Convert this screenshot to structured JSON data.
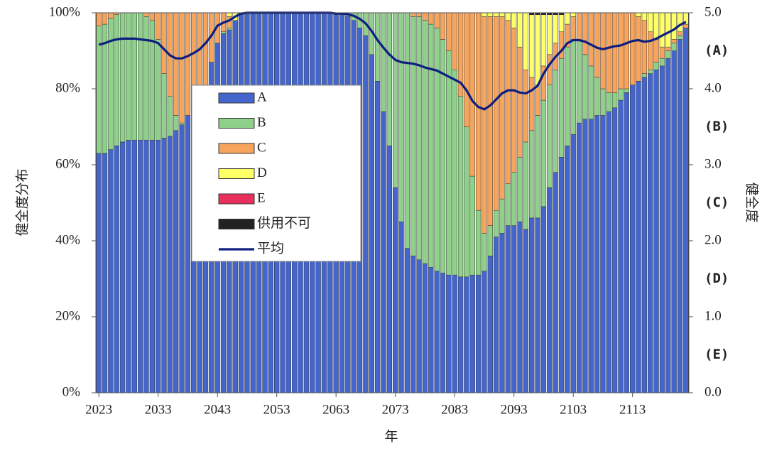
{
  "chart_data": {
    "type": "stacked_bar",
    "x_label": "年",
    "y_label": "健全度分布",
    "y2_label": "健全度",
    "x": [
      2023,
      2024,
      2025,
      2026,
      2027,
      2028,
      2029,
      2030,
      2031,
      2032,
      2033,
      2034,
      2035,
      2036,
      2037,
      2038,
      2039,
      2040,
      2041,
      2042,
      2043,
      2044,
      2045,
      2046,
      2047,
      2048,
      2049,
      2050,
      2051,
      2052,
      2053,
      2054,
      2055,
      2056,
      2057,
      2058,
      2059,
      2060,
      2061,
      2062,
      2063,
      2064,
      2065,
      2066,
      2067,
      2068,
      2069,
      2070,
      2071,
      2072,
      2073,
      2074,
      2075,
      2076,
      2077,
      2078,
      2079,
      2080,
      2081,
      2082,
      2083,
      2084,
      2085,
      2086,
      2087,
      2088,
      2089,
      2090,
      2091,
      2092,
      2093,
      2094,
      2095,
      2096,
      2097,
      2098,
      2099,
      2100,
      2101,
      2102,
      2103,
      2104,
      2105,
      2106,
      2107,
      2108,
      2109,
      2110,
      2111,
      2112,
      2113,
      2114,
      2115,
      2116,
      2117,
      2118,
      2119,
      2120,
      2121,
      2122
    ],
    "xlim": [
      2022.5,
      2122.5
    ],
    "xticks": [
      2023,
      2033,
      2043,
      2053,
      2063,
      2073,
      2083,
      2093,
      2103,
      2113
    ],
    "ylim": [
      0,
      100
    ],
    "yticks": [
      {
        "value": 0,
        "label": "0%"
      },
      {
        "value": 20,
        "label": "20%"
      },
      {
        "value": 40,
        "label": "40%"
      },
      {
        "value": 60,
        "label": "60%"
      },
      {
        "value": 80,
        "label": "80%"
      },
      {
        "value": 100,
        "label": "100%"
      }
    ],
    "y2lim": [
      0,
      5
    ],
    "y2ticks": [
      {
        "value": 0,
        "label": "0.0"
      },
      {
        "value": 1,
        "label": "1.0"
      },
      {
        "value": 2,
        "label": "2.0"
      },
      {
        "value": 3,
        "label": "3.0"
      },
      {
        "value": 4,
        "label": "4.0"
      },
      {
        "value": 5,
        "label": "5.0"
      }
    ],
    "y2_annotations": [
      {
        "value": 4.5,
        "label": "(A)"
      },
      {
        "value": 3.5,
        "label": "(B)"
      },
      {
        "value": 2.5,
        "label": "(C)"
      },
      {
        "value": 1.5,
        "label": "(D)"
      },
      {
        "value": 0.5,
        "label": "(E)"
      }
    ],
    "series": [
      {
        "name": "A",
        "color": "#4466cc",
        "values": [
          63,
          63,
          64,
          65,
          66,
          66.5,
          66.5,
          66.5,
          66.5,
          66.5,
          66.5,
          67,
          67.5,
          69,
          70.5,
          73,
          75,
          77,
          81,
          87,
          92,
          94.5,
          95.5,
          98,
          99.5,
          100,
          100,
          100,
          100,
          100,
          100,
          100,
          100,
          100,
          100,
          100,
          100,
          100,
          100,
          100,
          99.5,
          99.5,
          99,
          98,
          96,
          94,
          89,
          82,
          74,
          65,
          54,
          45,
          38,
          36,
          35,
          34,
          33,
          32,
          31.5,
          31,
          31,
          30.5,
          30.5,
          31,
          31,
          32,
          36,
          41,
          42,
          44,
          44,
          45,
          43,
          46,
          46,
          49,
          54,
          58,
          62,
          65,
          68,
          71,
          72,
          72,
          73,
          73,
          74,
          75,
          77,
          79,
          81,
          82,
          83,
          84,
          85,
          86,
          88,
          90,
          93,
          96
        ]
      },
      {
        "name": "B",
        "color": "#8fd08a",
        "values": [
          33.5,
          34,
          34.5,
          34.5,
          34,
          33.5,
          33.5,
          33.5,
          32.5,
          31.5,
          26.5,
          17,
          10.5,
          4,
          0.5,
          0,
          0,
          0,
          0,
          0,
          0,
          0.5,
          0.5,
          0,
          0,
          0,
          0,
          0,
          0,
          0,
          0,
          0,
          0,
          0,
          0,
          0,
          0,
          0,
          0,
          0,
          0.5,
          0.5,
          1,
          2,
          4,
          6,
          11,
          18,
          26,
          35,
          46,
          55,
          62,
          63,
          64,
          64,
          64,
          64,
          61.5,
          59,
          54,
          47.5,
          39.5,
          26,
          17,
          10,
          8,
          7,
          9,
          11,
          14,
          17,
          23,
          23,
          27,
          28,
          27,
          27,
          26,
          26,
          25,
          22,
          17,
          14,
          10,
          7,
          5,
          4,
          3,
          1,
          0,
          0,
          1,
          1,
          2,
          2,
          2,
          2,
          1,
          0
        ]
      },
      {
        "name": "C",
        "color": "#f7a45c",
        "values": [
          3.5,
          3,
          1.5,
          0.5,
          0,
          0,
          0,
          0,
          1,
          2,
          7,
          16,
          22,
          27,
          29,
          27,
          25,
          23,
          19,
          13,
          8,
          5,
          3,
          0,
          0.5,
          0,
          0,
          0,
          0,
          0,
          0,
          0,
          0,
          0,
          0,
          0,
          0,
          0,
          0,
          0,
          0,
          0,
          0,
          0,
          0,
          0,
          0,
          0,
          0,
          0,
          0,
          0,
          0,
          1,
          1,
          2,
          3,
          4,
          7,
          10,
          15,
          22,
          30,
          43,
          52,
          57,
          55,
          51,
          48,
          43,
          38,
          29,
          19,
          14,
          8,
          9,
          8,
          7,
          7,
          6,
          6,
          7,
          11,
          14,
          17,
          20,
          21,
          21,
          20,
          20,
          19,
          17,
          14,
          10,
          6,
          3,
          1,
          1,
          1,
          1
        ]
      },
      {
        "name": "D",
        "color": "#ffff66",
        "values": [
          0,
          0,
          0,
          0,
          0,
          0,
          0,
          0,
          0,
          0,
          0,
          0,
          0,
          0,
          0,
          0,
          0,
          0,
          0,
          0,
          0,
          0,
          1,
          2,
          0,
          0,
          0,
          0,
          0,
          0,
          0,
          0,
          0,
          0,
          0,
          0,
          0,
          0,
          0,
          0,
          0,
          0,
          0,
          0,
          0,
          0,
          0,
          0,
          0,
          0,
          0,
          0,
          0,
          0,
          0,
          0,
          0,
          0,
          0,
          0,
          0,
          0,
          0,
          0,
          0,
          1,
          1,
          1,
          1,
          2,
          4,
          9,
          15,
          16.5,
          18.5,
          13.5,
          10.5,
          7.5,
          4.5,
          3,
          1,
          0,
          0,
          0,
          0,
          0,
          0,
          0,
          0,
          0,
          0,
          1,
          2,
          5,
          7,
          9,
          9,
          7,
          5,
          3
        ]
      },
      {
        "name": "E",
        "color": "#e8305c",
        "values": [
          0,
          0,
          0,
          0,
          0,
          0,
          0,
          0,
          0,
          0,
          0,
          0,
          0,
          0,
          0,
          0,
          0,
          0,
          0,
          0,
          0,
          0,
          0,
          0,
          0,
          0,
          0,
          0,
          0,
          0,
          0,
          0,
          0,
          0,
          0,
          0,
          0,
          0,
          0,
          0,
          0,
          0,
          0,
          0,
          0,
          0,
          0,
          0,
          0,
          0,
          0,
          0,
          0,
          0,
          0,
          0,
          0,
          0,
          0,
          0,
          0,
          0,
          0,
          0,
          0,
          0,
          0,
          0,
          0,
          0,
          0,
          0,
          0,
          0,
          0,
          0,
          0,
          0,
          0,
          0,
          0,
          0,
          0,
          0,
          0,
          0,
          0,
          0,
          0,
          0,
          0,
          0,
          0,
          0,
          0,
          0,
          0,
          0,
          0,
          0
        ]
      },
      {
        "name": "供用不可",
        "color": "#222222",
        "values": [
          0,
          0,
          0,
          0,
          0,
          0,
          0,
          0,
          0,
          0,
          0,
          0,
          0,
          0,
          0,
          0,
          0,
          0,
          0,
          0,
          0,
          0,
          0,
          0,
          0,
          0,
          0,
          0,
          0,
          0,
          0,
          0,
          0,
          0,
          0,
          0,
          0,
          0,
          0,
          0,
          0,
          0,
          0,
          0,
          0,
          0,
          0,
          0,
          0,
          0,
          0,
          0,
          0,
          0,
          0,
          0,
          0,
          0,
          0,
          0,
          0,
          0,
          0,
          0,
          0,
          0,
          0,
          0,
          0,
          0,
          0,
          0,
          0,
          0.5,
          0.5,
          0.5,
          0.5,
          0.5,
          0.5,
          0,
          0,
          0,
          0,
          0,
          0,
          0,
          0,
          0,
          0,
          0,
          0,
          0,
          0,
          0,
          0,
          0,
          0,
          0,
          0,
          0
        ]
      },
      {
        "name": "平均",
        "color": "#0c1f80",
        "type": "line",
        "axis": "y2",
        "values": [
          4.58,
          4.6,
          4.63,
          4.65,
          4.66,
          4.66,
          4.66,
          4.65,
          4.64,
          4.63,
          4.6,
          4.52,
          4.44,
          4.4,
          4.4,
          4.43,
          4.47,
          4.52,
          4.6,
          4.7,
          4.83,
          4.87,
          4.9,
          4.95,
          4.99,
          5,
          5,
          5,
          5,
          5,
          5,
          5,
          5,
          5,
          5,
          5,
          5,
          5,
          5,
          5,
          4.99,
          4.99,
          4.98,
          4.96,
          4.92,
          4.86,
          4.76,
          4.64,
          4.54,
          4.45,
          4.38,
          4.35,
          4.34,
          4.33,
          4.31,
          4.28,
          4.26,
          4.24,
          4.2,
          4.16,
          4.12,
          4.08,
          3.98,
          3.84,
          3.76,
          3.73,
          3.78,
          3.86,
          3.94,
          3.98,
          3.98,
          3.95,
          3.94,
          3.98,
          4.04,
          4.2,
          4.32,
          4.42,
          4.5,
          4.6,
          4.64,
          4.64,
          4.62,
          4.58,
          4.54,
          4.52,
          4.54,
          4.56,
          4.57,
          4.6,
          4.63,
          4.64,
          4.62,
          4.63,
          4.66,
          4.7,
          4.74,
          4.78,
          4.84,
          4.88
        ]
      }
    ]
  }
}
